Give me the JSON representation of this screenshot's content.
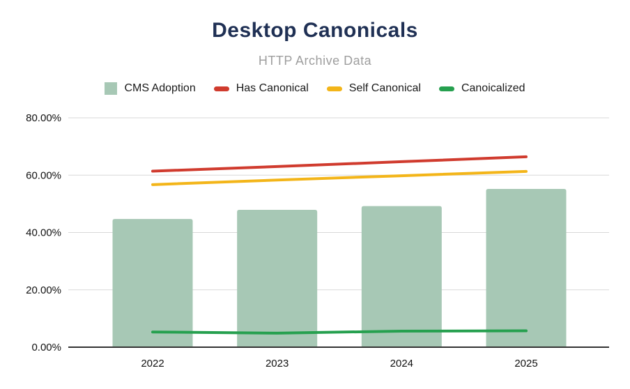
{
  "chart_data": {
    "type": "bar",
    "title": "Desktop Canonicals",
    "subtitle": "HTTP Archive Data",
    "categories": [
      "2022",
      "2023",
      "2024",
      "2025"
    ],
    "series": [
      {
        "name": "CMS Adoption",
        "kind": "bar",
        "color": "#a7c8b5",
        "values": [
          44.7,
          47.9,
          49.2,
          55.2
        ]
      },
      {
        "name": "Has Canonical",
        "kind": "line",
        "color": "#d03b2e",
        "values": [
          61.4,
          63.0,
          64.7,
          66.4
        ]
      },
      {
        "name": "Self Canonical",
        "kind": "line",
        "color": "#f3b519",
        "values": [
          56.7,
          58.3,
          59.8,
          61.3
        ]
      },
      {
        "name": "Canoicalized",
        "kind": "line",
        "color": "#26a04f",
        "values": [
          5.3,
          4.9,
          5.6,
          5.7
        ]
      }
    ],
    "ylim": [
      0,
      80
    ],
    "y_ticks": {
      "values": [
        0,
        20,
        40,
        60,
        80
      ],
      "labels": [
        "0.00%",
        "20.00%",
        "40.00%",
        "60.00%",
        "80.00%"
      ]
    },
    "grid": true,
    "legend_position": "top",
    "colors": {
      "title": "#1f3054",
      "subtitle": "#9e9e9e",
      "gridline": "#d9d9d9",
      "axis_baseline": "#333333",
      "tick_text": "#111111"
    }
  }
}
